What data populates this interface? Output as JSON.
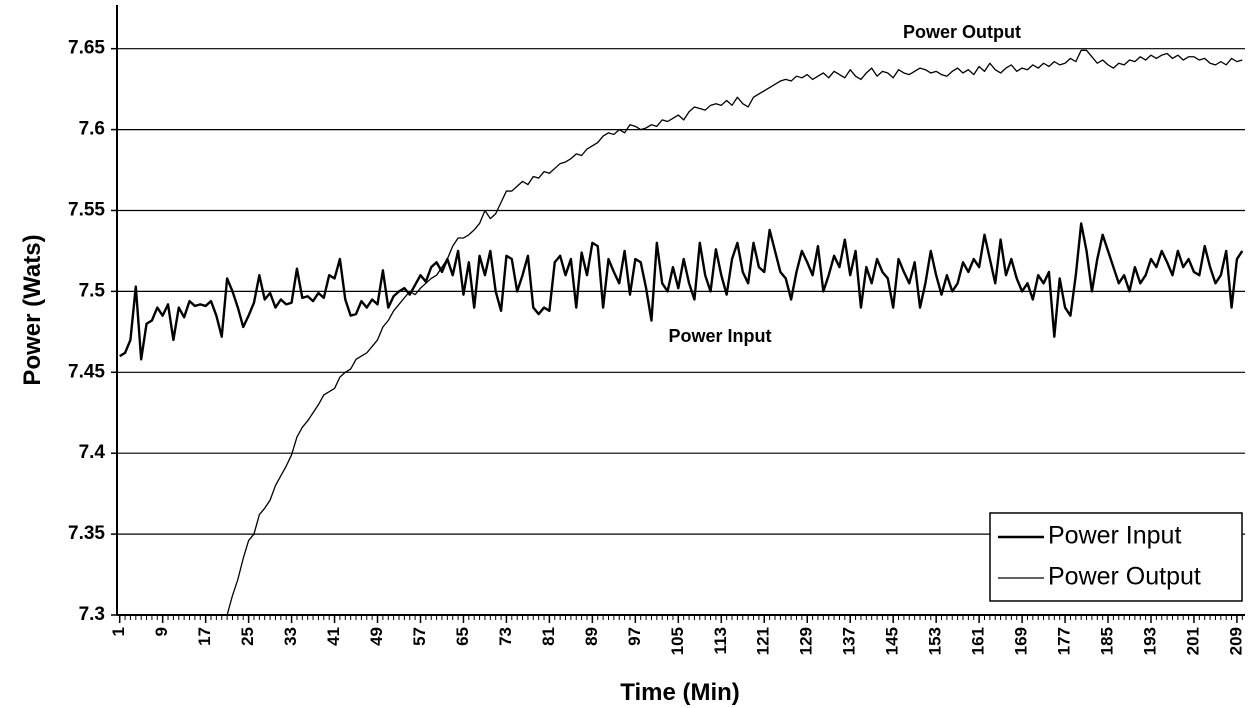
{
  "chart_data": {
    "type": "line",
    "xlabel": "Time (Min)",
    "ylabel": "Power (Wats)",
    "annotations": [
      "Power Output",
      "Power Input"
    ],
    "x": [
      1,
      2,
      3,
      4,
      5,
      6,
      7,
      8,
      9,
      10,
      11,
      12,
      13,
      14,
      15,
      16,
      17,
      18,
      19,
      20,
      21,
      22,
      23,
      24,
      25,
      26,
      27,
      28,
      29,
      30,
      31,
      32,
      33,
      34,
      35,
      36,
      37,
      38,
      39,
      40,
      41,
      42,
      43,
      44,
      45,
      46,
      47,
      48,
      49,
      50,
      51,
      52,
      53,
      54,
      55,
      56,
      57,
      58,
      59,
      60,
      61,
      62,
      63,
      64,
      65,
      66,
      67,
      68,
      69,
      70,
      71,
      72,
      73,
      74,
      75,
      76,
      77,
      78,
      79,
      80,
      81,
      82,
      83,
      84,
      85,
      86,
      87,
      88,
      89,
      90,
      91,
      92,
      93,
      94,
      95,
      96,
      97,
      98,
      99,
      100,
      101,
      102,
      103,
      104,
      105,
      106,
      107,
      108,
      109,
      110,
      111,
      112,
      113,
      114,
      115,
      116,
      117,
      118,
      119,
      120,
      121,
      122,
      123,
      124,
      125,
      126,
      127,
      128,
      129,
      130,
      131,
      132,
      133,
      134,
      135,
      136,
      137,
      138,
      139,
      140,
      141,
      142,
      143,
      144,
      145,
      146,
      147,
      148,
      149,
      150,
      151,
      152,
      153,
      154,
      155,
      156,
      157,
      158,
      159,
      160,
      161,
      162,
      163,
      164,
      165,
      166,
      167,
      168,
      169,
      170,
      171,
      172,
      173,
      174,
      175,
      176,
      177,
      178,
      179,
      180,
      181,
      182,
      183,
      184,
      185,
      186,
      187,
      188,
      189,
      190,
      191,
      192,
      193,
      194,
      195,
      196,
      197,
      198,
      199,
      200,
      201,
      202,
      203,
      204,
      205,
      206,
      207,
      208,
      209,
      210
    ],
    "xlim": [
      0.5,
      210.5
    ],
    "xticks": [
      1,
      9,
      17,
      25,
      33,
      41,
      49,
      57,
      65,
      73,
      81,
      89,
      97,
      105,
      113,
      121,
      129,
      137,
      145,
      153,
      161,
      169,
      177,
      185,
      193,
      201,
      209
    ],
    "ylim": [
      7.3,
      7.677
    ],
    "yticks": [
      7.3,
      7.35,
      7.4,
      7.45,
      7.5,
      7.55,
      7.6,
      7.65
    ],
    "grid": true,
    "legend": "lower right",
    "series": [
      {
        "name": "Power Input",
        "color": "#000000",
        "line_width": 2.4,
        "values": [
          7.46,
          7.462,
          7.47,
          7.503,
          7.458,
          7.48,
          7.482,
          7.49,
          7.485,
          7.492,
          7.47,
          7.49,
          7.484,
          7.494,
          7.491,
          7.492,
          7.491,
          7.494,
          7.485,
          7.472,
          7.508,
          7.5,
          7.49,
          7.478,
          7.485,
          7.493,
          7.51,
          7.495,
          7.499,
          7.49,
          7.495,
          7.492,
          7.493,
          7.514,
          7.496,
          7.497,
          7.494,
          7.499,
          7.496,
          7.51,
          7.508,
          7.52,
          7.495,
          7.485,
          7.486,
          7.494,
          7.49,
          7.495,
          7.492,
          7.513,
          7.49,
          7.497,
          7.5,
          7.502,
          7.498,
          7.504,
          7.51,
          7.506,
          7.515,
          7.518,
          7.512,
          7.52,
          7.51,
          7.525,
          7.498,
          7.518,
          7.49,
          7.522,
          7.51,
          7.525,
          7.5,
          7.488,
          7.522,
          7.52,
          7.5,
          7.51,
          7.522,
          7.49,
          7.486,
          7.49,
          7.488,
          7.518,
          7.522,
          7.51,
          7.52,
          7.49,
          7.524,
          7.51,
          7.53,
          7.528,
          7.49,
          7.52,
          7.512,
          7.505,
          7.525,
          7.498,
          7.52,
          7.518,
          7.502,
          7.482,
          7.53,
          7.505,
          7.5,
          7.515,
          7.502,
          7.52,
          7.505,
          7.495,
          7.53,
          7.51,
          7.5,
          7.526,
          7.51,
          7.498,
          7.52,
          7.53,
          7.512,
          7.505,
          7.53,
          7.515,
          7.512,
          7.538,
          7.525,
          7.512,
          7.508,
          7.495,
          7.512,
          7.525,
          7.518,
          7.51,
          7.528,
          7.5,
          7.51,
          7.522,
          7.515,
          7.532,
          7.51,
          7.525,
          7.49,
          7.515,
          7.505,
          7.52,
          7.512,
          7.508,
          7.49,
          7.52,
          7.512,
          7.505,
          7.518,
          7.49,
          7.505,
          7.525,
          7.51,
          7.498,
          7.51,
          7.5,
          7.505,
          7.518,
          7.512,
          7.52,
          7.515,
          7.535,
          7.52,
          7.505,
          7.532,
          7.51,
          7.52,
          7.508,
          7.5,
          7.505,
          7.495,
          7.51,
          7.505,
          7.512,
          7.472,
          7.508,
          7.49,
          7.485,
          7.51,
          7.542,
          7.525,
          7.5,
          7.52,
          7.535,
          7.525,
          7.515,
          7.505,
          7.51,
          7.5,
          7.515,
          7.505,
          7.51,
          7.52,
          7.515,
          7.525,
          7.518,
          7.51,
          7.525,
          7.515,
          7.52,
          7.512,
          7.51,
          7.528,
          7.515,
          7.505,
          7.51,
          7.525,
          7.49,
          7.52,
          7.525
        ]
      },
      {
        "name": "Power Output",
        "color": "#000000",
        "line_width": 1.3,
        "values": [
          null,
          null,
          null,
          null,
          null,
          null,
          null,
          null,
          null,
          null,
          null,
          null,
          null,
          null,
          null,
          null,
          null,
          null,
          null,
          null,
          7.3,
          7.312,
          7.322,
          7.335,
          7.346,
          7.35,
          7.362,
          7.366,
          7.371,
          7.38,
          7.386,
          7.392,
          7.399,
          7.41,
          7.416,
          7.42,
          7.425,
          7.43,
          7.436,
          7.438,
          7.44,
          7.447,
          7.45,
          7.452,
          7.458,
          7.46,
          7.462,
          7.466,
          7.47,
          7.478,
          7.482,
          7.488,
          7.492,
          7.496,
          7.5,
          7.498,
          7.502,
          7.505,
          7.508,
          7.51,
          7.515,
          7.52,
          7.528,
          7.533,
          7.533,
          7.535,
          7.538,
          7.542,
          7.55,
          7.545,
          7.548,
          7.555,
          7.562,
          7.562,
          7.565,
          7.568,
          7.566,
          7.571,
          7.57,
          7.574,
          7.573,
          7.576,
          7.579,
          7.58,
          7.582,
          7.585,
          7.584,
          7.588,
          7.59,
          7.592,
          7.596,
          7.598,
          7.597,
          7.6,
          7.598,
          7.603,
          7.602,
          7.6,
          7.601,
          7.603,
          7.602,
          7.606,
          7.605,
          7.607,
          7.609,
          7.606,
          7.611,
          7.614,
          7.613,
          7.612,
          7.615,
          7.616,
          7.615,
          7.618,
          7.615,
          7.62,
          7.616,
          7.614,
          7.62,
          7.622,
          7.624,
          7.626,
          7.628,
          7.63,
          7.631,
          7.63,
          7.633,
          7.632,
          7.634,
          7.631,
          7.633,
          7.635,
          7.632,
          7.636,
          7.634,
          7.632,
          7.637,
          7.633,
          7.631,
          7.635,
          7.638,
          7.633,
          7.636,
          7.635,
          7.632,
          7.637,
          7.635,
          7.634,
          7.636,
          7.638,
          7.637,
          7.635,
          7.636,
          7.634,
          7.633,
          7.636,
          7.638,
          7.635,
          7.637,
          7.634,
          7.639,
          7.636,
          7.641,
          7.637,
          7.635,
          7.638,
          7.64,
          7.636,
          7.638,
          7.637,
          7.64,
          7.638,
          7.641,
          7.639,
          7.642,
          7.64,
          7.641,
          7.644,
          7.642,
          7.649,
          7.649,
          7.645,
          7.641,
          7.643,
          7.64,
          7.638,
          7.641,
          7.64,
          7.643,
          7.642,
          7.645,
          7.643,
          7.646,
          7.644,
          7.646,
          7.647,
          7.644,
          7.646,
          7.643,
          7.645,
          7.645,
          7.643,
          7.644,
          7.641,
          7.64,
          7.642,
          7.64,
          7.644,
          7.642,
          7.643
        ]
      }
    ]
  }
}
